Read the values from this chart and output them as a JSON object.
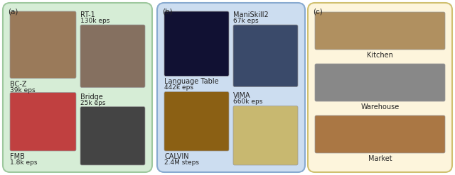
{
  "fig_width": 6.4,
  "fig_height": 2.47,
  "panel_a": {
    "label": "(a)",
    "bg_color": "#d6edd6",
    "border_color": "#9ec89e",
    "items": [
      {
        "name": "BC-Z",
        "subtitle": "39k eps",
        "img_color": "#9a7a5a",
        "text_left": true,
        "text_above": false
      },
      {
        "name": "RT-1",
        "subtitle": "130k eps",
        "img_color": "#857060",
        "text_left": false,
        "text_above": true
      },
      {
        "name": "FMB",
        "subtitle": "1.8k eps",
        "img_color": "#c04040",
        "text_left": true,
        "text_above": false
      },
      {
        "name": "Bridge",
        "subtitle": "25k eps",
        "img_color": "#444444",
        "text_left": false,
        "text_above": true
      }
    ]
  },
  "panel_b": {
    "label": "(b)",
    "bg_color": "#ccddf0",
    "border_color": "#88aad0",
    "items": [
      {
        "name": "Language Table",
        "subtitle": "442k eps",
        "img_color": "#111133",
        "text_left": true,
        "text_above": false
      },
      {
        "name": "ManiSkill2",
        "subtitle": "67k eps",
        "img_color": "#3a4a6a",
        "text_left": false,
        "text_above": true
      },
      {
        "name": "CALVIN",
        "subtitle": "2.4M steps",
        "img_color": "#8b6014",
        "text_left": true,
        "text_above": false
      },
      {
        "name": "VIMA",
        "subtitle": "660k eps",
        "img_color": "#c8b870",
        "text_left": false,
        "text_above": true
      }
    ]
  },
  "panel_c": {
    "label": "(c)",
    "bg_color": "#fdf5dc",
    "border_color": "#d0c070",
    "items": [
      {
        "name": "Kitchen",
        "img_color": "#b09060"
      },
      {
        "name": "Warehouse",
        "img_color": "#888888"
      },
      {
        "name": "Market",
        "img_color": "#aa7744"
      }
    ]
  },
  "text_color": "#222222",
  "font_size_label": 7.5,
  "font_size_name": 7.0,
  "font_size_sub": 6.5
}
